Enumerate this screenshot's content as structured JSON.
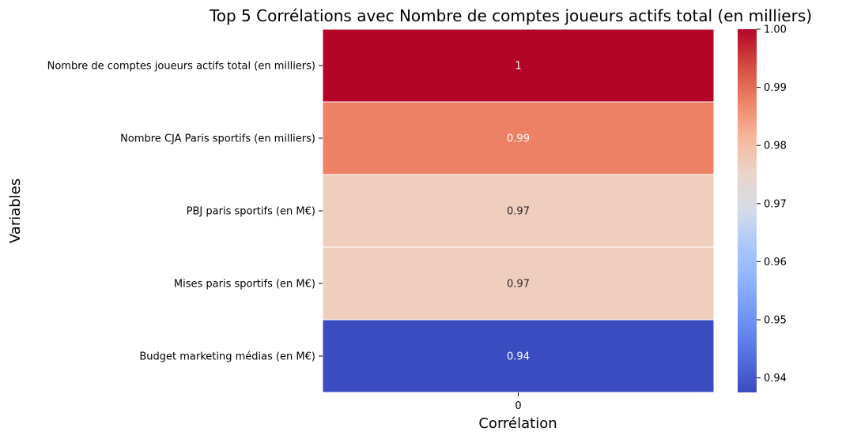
{
  "chart_data": {
    "type": "heatmap",
    "title": "Top 5 Corrélations avec Nombre de comptes joueurs actifs total (en milliers)",
    "xlabel": "Corrélation",
    "ylabel": "Variables",
    "columns": [
      "0"
    ],
    "rows": [
      "Nombre de comptes joueurs actifs total (en milliers)",
      "Nombre CJA Paris sportifs (en milliers)",
      "PBJ paris sportifs (en M€)",
      "Mises paris sportifs (en M€)",
      "Budget marketing médias (en M€)"
    ],
    "values": [
      1.0,
      0.99,
      0.97,
      0.97,
      0.94
    ],
    "annotations": [
      "1",
      "0.99",
      "0.97",
      "0.97",
      "0.94"
    ],
    "cell_colors": [
      "#b40426",
      "#ec8165",
      "#efcebd",
      "#efcebd",
      "#3b4cc0"
    ],
    "annotation_colors": [
      "#ffffff",
      "#ffffff",
      "#262626",
      "#262626",
      "#ffffff"
    ],
    "colorbar": {
      "range": [
        0.9375,
        1.0
      ],
      "ticks": [
        "1.00",
        "0.99",
        "0.98",
        "0.97",
        "0.96",
        "0.95",
        "0.94"
      ],
      "tick_values": [
        1.0,
        0.99,
        0.98,
        0.97,
        0.96,
        0.95,
        0.94
      ],
      "colormap": "coolwarm",
      "gradient_stops": [
        "#b40426",
        "#d24b40",
        "#ee8468",
        "#f6b79c",
        "#e9d5cb",
        "#d3dbe7",
        "#aac7fd",
        "#8db0fe",
        "#6f92f3",
        "#5470de",
        "#3b4cc0"
      ]
    },
    "grid": false
  }
}
